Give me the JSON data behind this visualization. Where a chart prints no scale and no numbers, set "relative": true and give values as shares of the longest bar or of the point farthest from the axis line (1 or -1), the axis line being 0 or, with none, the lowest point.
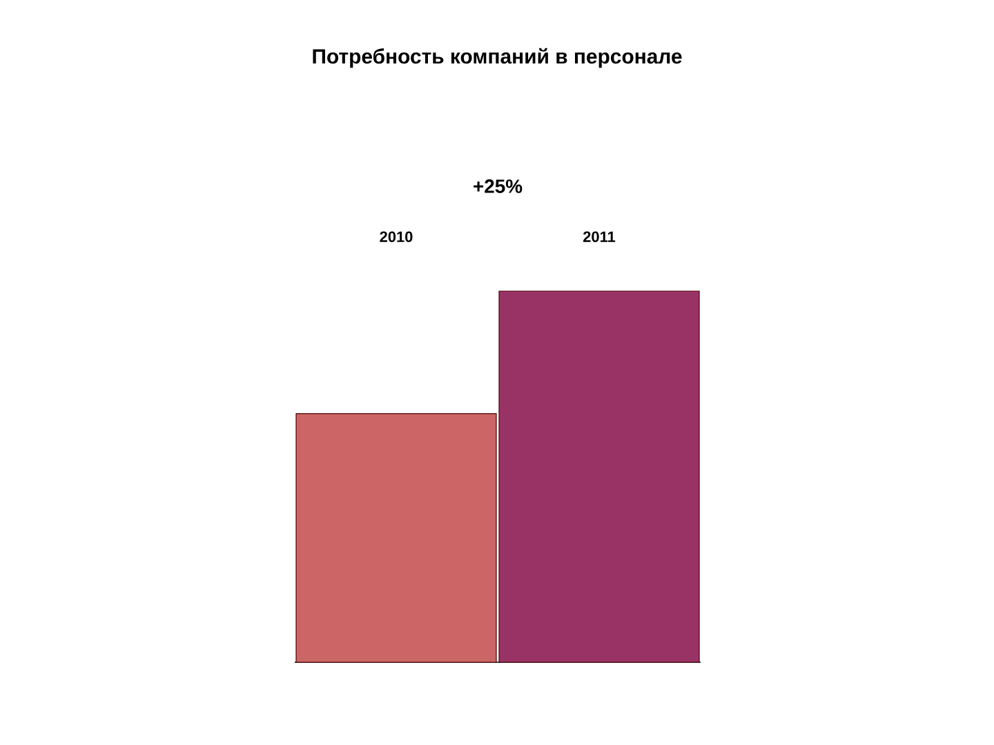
{
  "chart_data": {
    "type": "bar",
    "title": "Потребность компаний в персонале",
    "categories": [
      "2010",
      "2011"
    ],
    "values": [
      0.67,
      1
    ],
    "colors": [
      "#cc6666",
      "#993366"
    ],
    "relative": true,
    "annotations": [
      "+25%"
    ]
  }
}
